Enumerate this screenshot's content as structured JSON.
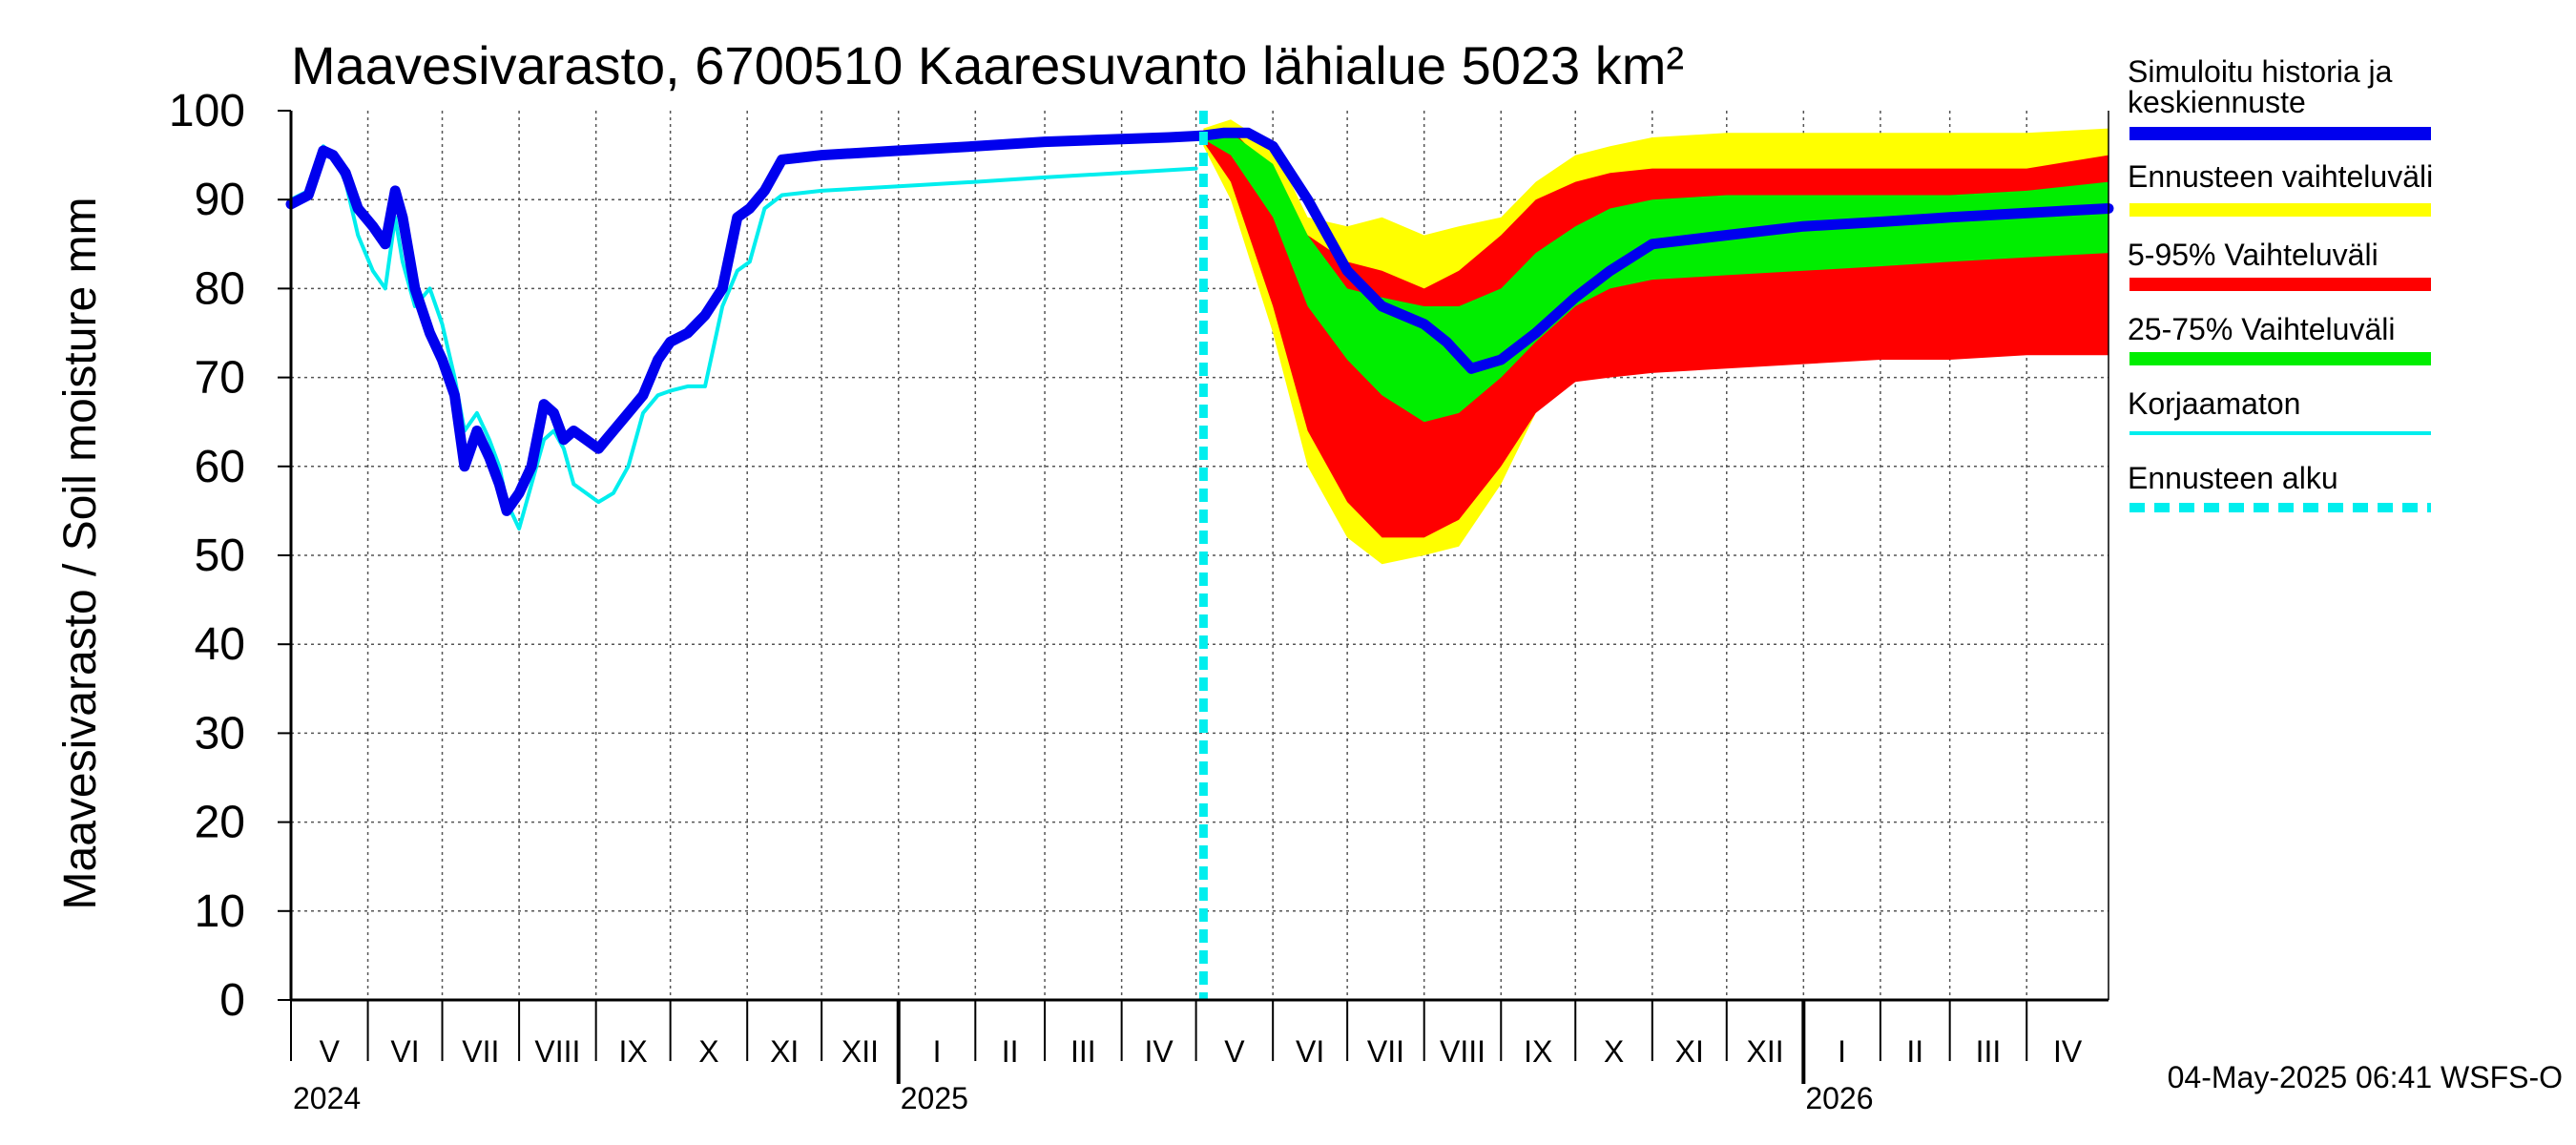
{
  "chart_data": {
    "type": "line",
    "title": "Maavesivarasto, 6700510 Kaaresuvanto lähialue 5023 km²",
    "ylabel": "Maavesivarasto / Soil moisture   mm",
    "ylim": [
      0,
      100
    ],
    "yticks": [
      "0",
      "10",
      "20",
      "30",
      "40",
      "50",
      "60",
      "70",
      "80",
      "90",
      "100"
    ],
    "xlim": [
      "2024-05-01",
      "2026-05-04"
    ],
    "grid": true,
    "months": [
      {
        "label": "V",
        "start": "2024-05-01"
      },
      {
        "label": "VI",
        "start": "2024-06-01"
      },
      {
        "label": "VII",
        "start": "2024-07-01"
      },
      {
        "label": "VIII",
        "start": "2024-08-01"
      },
      {
        "label": "IX",
        "start": "2024-09-01"
      },
      {
        "label": "X",
        "start": "2024-10-01"
      },
      {
        "label": "XI",
        "start": "2024-11-01"
      },
      {
        "label": "XII",
        "start": "2024-12-01"
      },
      {
        "label": "I",
        "start": "2025-01-01"
      },
      {
        "label": "II",
        "start": "2025-02-01"
      },
      {
        "label": "III",
        "start": "2025-03-01"
      },
      {
        "label": "IV",
        "start": "2025-04-01"
      },
      {
        "label": "V",
        "start": "2025-05-01"
      },
      {
        "label": "VI",
        "start": "2025-06-01"
      },
      {
        "label": "VII",
        "start": "2025-07-01"
      },
      {
        "label": "VIII",
        "start": "2025-08-01"
      },
      {
        "label": "IX",
        "start": "2025-09-01"
      },
      {
        "label": "X",
        "start": "2025-10-01"
      },
      {
        "label": "XI",
        "start": "2025-11-01"
      },
      {
        "label": "XII",
        "start": "2025-12-01"
      },
      {
        "label": "I",
        "start": "2026-01-01"
      },
      {
        "label": "II",
        "start": "2026-02-01"
      },
      {
        "label": "III",
        "start": "2026-03-01"
      },
      {
        "label": "IV",
        "start": "2026-04-01"
      }
    ],
    "years": [
      {
        "label": "2024",
        "date": "2024-05-01"
      },
      {
        "label": "2025",
        "date": "2025-01-01"
      },
      {
        "label": "2026",
        "date": "2026-01-01"
      }
    ],
    "forecast_start": "2025-05-04",
    "legend": [
      {
        "label": "Simuloitu historia ja keskiennuste",
        "lines": [
          "Simuloitu historia ja",
          "keskiennuste"
        ],
        "color": "#0000ee",
        "style": "thick"
      },
      {
        "label": "Ennusteen vaihteluväli",
        "lines": [
          "Ennusteen vaihteluväli"
        ],
        "color": "#ffff00",
        "style": "thick"
      },
      {
        "label": "5-95% Vaihteluväli",
        "lines": [
          "5-95% Vaihteluväli"
        ],
        "color": "#ff0000",
        "style": "thick"
      },
      {
        "label": "25-75% Vaihteluväli",
        "lines": [
          "25-75% Vaihteluväli"
        ],
        "color": "#00ee00",
        "style": "thick"
      },
      {
        "label": "Korjaamaton",
        "lines": [
          "Korjaamaton"
        ],
        "color": "#00eeee",
        "style": "thin"
      },
      {
        "label": "Ennusteen alku",
        "lines": [
          "Ennusteen alku"
        ],
        "color": "#00eeee",
        "style": "dashed"
      }
    ],
    "series": [
      {
        "name": "Simuloitu historia ja keskiennuste",
        "color": "#0000ee",
        "x": [
          "2024-05-01",
          "2024-05-08",
          "2024-05-14",
          "2024-05-18",
          "2024-05-23",
          "2024-05-28",
          "2024-06-03",
          "2024-06-08",
          "2024-06-12",
          "2024-06-15",
          "2024-06-20",
          "2024-06-26",
          "2024-07-01",
          "2024-07-06",
          "2024-07-10",
          "2024-07-15",
          "2024-07-20",
          "2024-07-24",
          "2024-07-27",
          "2024-08-01",
          "2024-08-06",
          "2024-08-11",
          "2024-08-15",
          "2024-08-19",
          "2024-08-23",
          "2024-08-28",
          "2024-09-02",
          "2024-09-08",
          "2024-09-14",
          "2024-09-20",
          "2024-09-26",
          "2024-10-01",
          "2024-10-08",
          "2024-10-15",
          "2024-10-22",
          "2024-10-28",
          "2024-11-02",
          "2024-11-08",
          "2024-11-15",
          "2024-12-01",
          "2025-01-01",
          "2025-02-01",
          "2025-03-01",
          "2025-04-01",
          "2025-04-20",
          "2025-05-04",
          "2025-05-12",
          "2025-05-22",
          "2025-06-01",
          "2025-06-15",
          "2025-07-01",
          "2025-07-15",
          "2025-08-01",
          "2025-08-10",
          "2025-08-20",
          "2025-09-01",
          "2025-09-15",
          "2025-10-01",
          "2025-10-15",
          "2025-11-01",
          "2025-12-01",
          "2026-01-01",
          "2026-02-01",
          "2026-03-01",
          "2026-04-01",
          "2026-05-04"
        ],
        "y": [
          89.5,
          90.5,
          95.5,
          95,
          93,
          89,
          87,
          85,
          91,
          88,
          80,
          75,
          72,
          68,
          60,
          64,
          61,
          58,
          55,
          57,
          60,
          67,
          66,
          63,
          64,
          63,
          62,
          64,
          66,
          68,
          72,
          74,
          75,
          77,
          80,
          88,
          89,
          91,
          94.5,
          95,
          95.5,
          96,
          96.5,
          96.8,
          97,
          97.2,
          97.5,
          97.5,
          96,
          90,
          82,
          78,
          76,
          74,
          71,
          72,
          75,
          79,
          82,
          85,
          86,
          87,
          87.5,
          88,
          88.5,
          89
        ]
      },
      {
        "name": "Korjaamaton",
        "color": "#00eeee",
        "x": [
          "2024-05-01",
          "2024-05-08",
          "2024-05-14",
          "2024-05-18",
          "2024-05-23",
          "2024-05-28",
          "2024-06-03",
          "2024-06-08",
          "2024-06-12",
          "2024-06-15",
          "2024-06-20",
          "2024-06-26",
          "2024-07-01",
          "2024-07-06",
          "2024-07-10",
          "2024-07-15",
          "2024-07-20",
          "2024-07-24",
          "2024-07-27",
          "2024-08-01",
          "2024-08-06",
          "2024-08-11",
          "2024-08-15",
          "2024-08-19",
          "2024-08-23",
          "2024-08-28",
          "2024-09-02",
          "2024-09-08",
          "2024-09-14",
          "2024-09-20",
          "2024-09-26",
          "2024-10-01",
          "2024-10-08",
          "2024-10-15",
          "2024-10-22",
          "2024-10-28",
          "2024-11-02",
          "2024-11-08",
          "2024-11-15",
          "2024-12-01",
          "2025-01-01",
          "2025-02-01",
          "2025-03-01",
          "2025-04-01",
          "2025-05-01"
        ],
        "y": [
          90,
          91,
          96,
          95,
          92,
          86,
          82,
          80,
          88,
          83,
          78,
          80,
          76,
          70,
          64,
          66,
          63,
          60,
          56,
          53,
          58,
          63,
          64,
          62,
          58,
          57,
          56,
          57,
          60,
          66,
          68,
          68.5,
          69,
          69,
          78,
          82,
          83,
          89,
          90.5,
          91,
          91.5,
          92,
          92.5,
          93,
          93.5
        ]
      }
    ],
    "bands": [
      {
        "name": "Ennusteen vaihteluväli",
        "color": "#ffff00",
        "x": [
          "2025-05-04",
          "2025-05-15",
          "2025-06-01",
          "2025-06-15",
          "2025-07-01",
          "2025-07-15",
          "2025-08-01",
          "2025-08-15",
          "2025-09-01",
          "2025-09-15",
          "2025-10-01",
          "2025-10-15",
          "2025-11-01",
          "2025-12-01",
          "2026-01-01",
          "2026-02-01",
          "2026-03-01",
          "2026-04-01",
          "2026-05-04"
        ],
        "high": [
          98,
          99,
          96,
          88,
          87,
          88,
          86,
          87,
          88,
          92,
          95,
          96,
          97,
          97.5,
          97.5,
          97.5,
          97.5,
          97.5,
          98
        ],
        "low": [
          96,
          90,
          75,
          60,
          52,
          49,
          50,
          51,
          58,
          66,
          70,
          70.5,
          71,
          71.5,
          72,
          72,
          72.5,
          73,
          73
        ]
      },
      {
        "name": "5-95% Vaihteluväli",
        "color": "#ff0000",
        "x": [
          "2025-05-04",
          "2025-05-15",
          "2025-06-01",
          "2025-06-15",
          "2025-07-01",
          "2025-07-15",
          "2025-08-01",
          "2025-08-15",
          "2025-09-01",
          "2025-09-15",
          "2025-10-01",
          "2025-10-15",
          "2025-11-01",
          "2025-12-01",
          "2026-01-01",
          "2026-02-01",
          "2026-03-01",
          "2026-04-01",
          "2026-05-04"
        ],
        "high": [
          97.5,
          98,
          93,
          86,
          83,
          82,
          80,
          82,
          86,
          90,
          92,
          93,
          93.5,
          93.5,
          93.5,
          93.5,
          93.5,
          93.5,
          95
        ],
        "low": [
          96.5,
          92,
          78,
          64,
          56,
          52,
          52,
          54,
          60,
          66,
          69.5,
          70,
          70.5,
          71,
          71.5,
          72,
          72,
          72.5,
          72.5
        ]
      },
      {
        "name": "25-75% Vaihteluväli",
        "color": "#00ee00",
        "x": [
          "2025-05-04",
          "2025-05-15",
          "2025-06-01",
          "2025-06-15",
          "2025-07-01",
          "2025-07-15",
          "2025-08-01",
          "2025-08-15",
          "2025-09-01",
          "2025-09-15",
          "2025-10-01",
          "2025-10-15",
          "2025-11-01",
          "2025-12-01",
          "2026-01-01",
          "2026-02-01",
          "2026-03-01",
          "2026-04-01",
          "2026-05-04"
        ],
        "high": [
          97.3,
          97.5,
          94,
          86,
          80,
          79,
          78,
          78,
          80,
          84,
          87,
          89,
          90,
          90.5,
          90.5,
          90.5,
          90.5,
          91,
          92
        ],
        "low": [
          96.8,
          95,
          88,
          78,
          72,
          68,
          65,
          66,
          70,
          74,
          78,
          80,
          81,
          81.5,
          82,
          82.5,
          83,
          83.5,
          84
        ]
      }
    ]
  },
  "footer": {
    "timestamp": "04-May-2025 06:41 WSFS-O"
  }
}
